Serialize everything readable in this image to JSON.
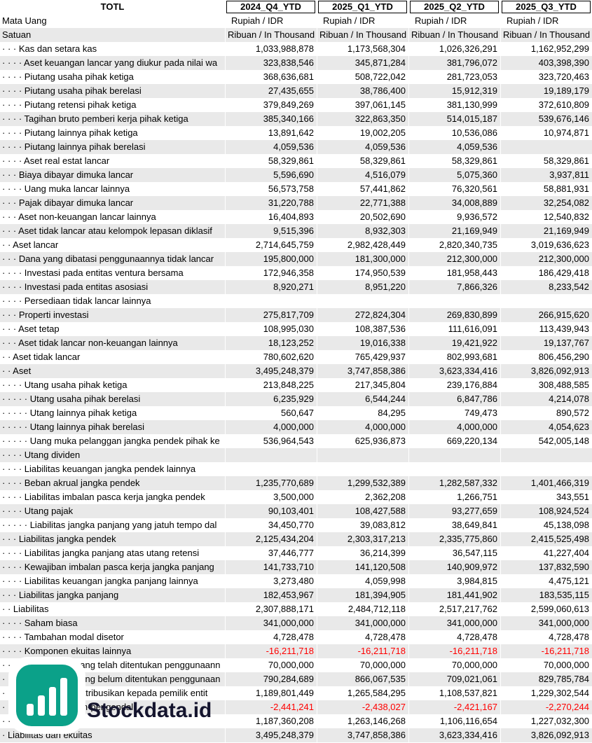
{
  "header": {
    "ticker": "TOTL",
    "periods": [
      "2024_Q4_YTD",
      "2025_Q1_YTD",
      "2025_Q2_YTD",
      "2025_Q3_YTD"
    ],
    "currency_row": {
      "label": "Mata Uang",
      "values": [
        "Rupiah / IDR",
        "Rupiah / IDR",
        "Rupiah / IDR",
        "Rupiah / IDR"
      ]
    },
    "unit_row": {
      "label": "Satuan",
      "values": [
        "Ribuan / In Thousand",
        "Ribuan / In Thousand",
        "Ribuan / In Thousand",
        "Ribuan / In Thousand"
      ]
    }
  },
  "rows": [
    {
      "label": "· · · Kas dan setara kas",
      "values": [
        "1,033,988,878",
        "1,173,568,304",
        "1,026,326,291",
        "1,162,952,299"
      ]
    },
    {
      "label": "· · · · Aset keuangan lancar yang diukur pada nilai wa",
      "values": [
        "323,838,546",
        "345,871,284",
        "381,796,072",
        "403,398,390"
      ]
    },
    {
      "label": "· · · · Piutang usaha pihak ketiga",
      "values": [
        "368,636,681",
        "508,722,042",
        "281,723,053",
        "323,720,463"
      ]
    },
    {
      "label": "· · · · Piutang usaha pihak berelasi",
      "values": [
        "27,435,655",
        "38,786,400",
        "15,912,319",
        "19,189,179"
      ]
    },
    {
      "label": "· · · · Piutang retensi pihak ketiga",
      "values": [
        "379,849,269",
        "397,061,145",
        "381,130,999",
        "372,610,809"
      ]
    },
    {
      "label": "· · · · Tagihan bruto pemberi kerja pihak ketiga",
      "values": [
        "385,340,166",
        "322,863,350",
        "514,015,187",
        "539,676,146"
      ]
    },
    {
      "label": "· · · · Piutang lainnya pihak ketiga",
      "values": [
        "13,891,642",
        "19,002,205",
        "10,536,086",
        "10,974,871"
      ]
    },
    {
      "label": "· · · · Piutang lainnya pihak berelasi",
      "values": [
        "4,059,536",
        "4,059,536",
        "4,059,536",
        ""
      ]
    },
    {
      "label": "· · · · Aset real estat lancar",
      "values": [
        "58,329,861",
        "58,329,861",
        "58,329,861",
        "58,329,861"
      ]
    },
    {
      "label": "· · · Biaya dibayar dimuka lancar",
      "values": [
        "5,596,690",
        "4,516,079",
        "5,075,360",
        "3,937,811"
      ]
    },
    {
      "label": "· · · · Uang muka lancar lainnya",
      "values": [
        "56,573,758",
        "57,441,862",
        "76,320,561",
        "58,881,931"
      ]
    },
    {
      "label": "· · · Pajak dibayar dimuka lancar",
      "values": [
        "31,220,788",
        "22,771,388",
        "34,008,889",
        "32,254,082"
      ]
    },
    {
      "label": "· · · Aset non-keuangan lancar lainnya",
      "values": [
        "16,404,893",
        "20,502,690",
        "9,936,572",
        "12,540,832"
      ]
    },
    {
      "label": "· · · Aset tidak lancar atau kelompok lepasan diklasif",
      "values": [
        "9,515,396",
        "8,932,303",
        "21,169,949",
        "21,169,949"
      ]
    },
    {
      "label": "· · Aset lancar",
      "values": [
        "2,714,645,759",
        "2,982,428,449",
        "2,820,340,735",
        "3,019,636,623"
      ]
    },
    {
      "label": "· · · Dana yang dibatasi penggunaannya tidak lancar",
      "values": [
        "195,800,000",
        "181,300,000",
        "212,300,000",
        "212,300,000"
      ]
    },
    {
      "label": "· · · · Investasi pada entitas ventura bersama",
      "values": [
        "172,946,358",
        "174,950,539",
        "181,958,443",
        "186,429,418"
      ]
    },
    {
      "label": "· · · · Investasi pada entitas asosiasi",
      "values": [
        "8,920,271",
        "8,951,220",
        "7,866,326",
        "8,233,542"
      ]
    },
    {
      "label": "· · · · Persediaan tidak lancar lainnya",
      "values": [
        "",
        "",
        "",
        ""
      ]
    },
    {
      "label": "· · · Properti investasi",
      "values": [
        "275,817,709",
        "272,824,304",
        "269,830,899",
        "266,915,620"
      ]
    },
    {
      "label": "· · · Aset tetap",
      "values": [
        "108,995,030",
        "108,387,536",
        "111,616,091",
        "113,439,943"
      ]
    },
    {
      "label": "· · · Aset tidak lancar non-keuangan lainnya",
      "values": [
        "18,123,252",
        "19,016,338",
        "19,421,922",
        "19,137,767"
      ]
    },
    {
      "label": "· · Aset tidak lancar",
      "values": [
        "780,602,620",
        "765,429,937",
        "802,993,681",
        "806,456,290"
      ]
    },
    {
      "label": "· · Aset",
      "values": [
        "3,495,248,379",
        "3,747,858,386",
        "3,623,334,416",
        "3,826,092,913"
      ]
    },
    {
      "label": "· · · · Utang usaha pihak ketiga",
      "values": [
        "213,848,225",
        "217,345,804",
        "239,176,884",
        "308,488,585"
      ]
    },
    {
      "label": "· · · · · Utang usaha pihak berelasi",
      "values": [
        "6,235,929",
        "6,544,244",
        "6,847,786",
        "4,214,078"
      ]
    },
    {
      "label": "· · · · · Utang lainnya pihak ketiga",
      "values": [
        "560,647",
        "84,295",
        "749,473",
        "890,572"
      ]
    },
    {
      "label": "· · · · · Utang lainnya pihak berelasi",
      "values": [
        "4,000,000",
        "4,000,000",
        "4,000,000",
        "4,054,623"
      ]
    },
    {
      "label": "· · · · · Uang muka pelanggan jangka pendek pihak ke",
      "values": [
        "536,964,543",
        "625,936,873",
        "669,220,134",
        "542,005,148"
      ]
    },
    {
      "label": "· · · · Utang dividen",
      "values": [
        "",
        "",
        "",
        ""
      ]
    },
    {
      "label": "· · · · Liabilitas keuangan jangka pendek lainnya",
      "values": [
        "",
        "",
        "",
        ""
      ]
    },
    {
      "label": "· · · · Beban akrual jangka pendek",
      "values": [
        "1,235,770,689",
        "1,299,532,389",
        "1,282,587,332",
        "1,401,466,319"
      ]
    },
    {
      "label": "· · · · Liabilitas imbalan pasca kerja jangka pendek",
      "values": [
        "3,500,000",
        "2,362,208",
        "1,266,751",
        "343,551"
      ]
    },
    {
      "label": "· · · · Utang pajak",
      "values": [
        "90,103,401",
        "108,427,588",
        "93,277,659",
        "108,924,524"
      ]
    },
    {
      "label": "· · · · · Liabilitas jangka panjang yang jatuh tempo dal",
      "values": [
        "34,450,770",
        "39,083,812",
        "38,649,841",
        "45,138,098"
      ]
    },
    {
      "label": "· · · Liabilitas jangka pendek",
      "values": [
        "2,125,434,204",
        "2,303,317,213",
        "2,335,775,860",
        "2,415,525,498"
      ]
    },
    {
      "label": "· · · · Liabilitas jangka panjang atas utang retensi",
      "values": [
        "37,446,777",
        "36,214,399",
        "36,547,115",
        "41,227,404"
      ]
    },
    {
      "label": "· · · · Kewajiban imbalan pasca kerja jangka panjang",
      "values": [
        "141,733,710",
        "141,120,508",
        "140,909,972",
        "137,832,590"
      ]
    },
    {
      "label": "· · · · Liabilitas keuangan jangka panjang lainnya",
      "values": [
        "3,273,480",
        "4,059,998",
        "3,984,815",
        "4,475,121"
      ]
    },
    {
      "label": "· · · Liabilitas jangka panjang",
      "values": [
        "182,453,967",
        "181,394,905",
        "181,441,902",
        "183,535,115"
      ]
    },
    {
      "label": "· · Liabilitas",
      "values": [
        "2,307,888,171",
        "2,484,712,118",
        "2,517,217,762",
        "2,599,060,613"
      ]
    },
    {
      "label": "· · · · Saham biasa",
      "values": [
        "341,000,000",
        "341,000,000",
        "341,000,000",
        "341,000,000"
      ]
    },
    {
      "label": "· · · · Tambahan modal disetor",
      "values": [
        "4,728,478",
        "4,728,478",
        "4,728,478",
        "4,728,478"
      ]
    },
    {
      "label": "· · · · Komponen ekuitas lainnya",
      "values": [
        "-16,211,718",
        "-16,211,718",
        "-16,211,718",
        "-16,211,718"
      ]
    },
    {
      "label": "· · · · · Saldo laba yang telah ditentukan penggunaann",
      "values": [
        "70,000,000",
        "70,000,000",
        "70,000,000",
        "70,000,000"
      ]
    },
    {
      "label": "· · · · · Saldo laba yang belum ditentukan penggunaan",
      "values": [
        "790,284,689",
        "866,067,535",
        "709,021,061",
        "829,785,784"
      ]
    },
    {
      "label": "· · · Ekuitas yang diatribusikan kepada pemilik entit",
      "values": [
        "1,189,801,449",
        "1,265,584,295",
        "1,108,537,821",
        "1,229,302,544"
      ]
    },
    {
      "label": "· · · Kepentingan non-pengendali",
      "values": [
        "-2,441,241",
        "-2,438,027",
        "-2,421,167",
        "-2,270,244"
      ]
    },
    {
      "label": "· · Ekuitas",
      "values": [
        "1,187,360,208",
        "1,263,146,268",
        "1,106,116,654",
        "1,227,032,300"
      ]
    },
    {
      "label": "· Liabilitas dan ekuitas",
      "values": [
        "3,495,248,379",
        "3,747,858,386",
        "3,623,334,416",
        "3,826,092,913"
      ]
    }
  ],
  "watermark": {
    "brand": "Stockdata.id"
  },
  "colors": {
    "stripe_gray": "#e9e9e9",
    "negative_red": "#ff0000",
    "brand_teal": "#0ba189",
    "brand_text_dark": "#15152e"
  }
}
